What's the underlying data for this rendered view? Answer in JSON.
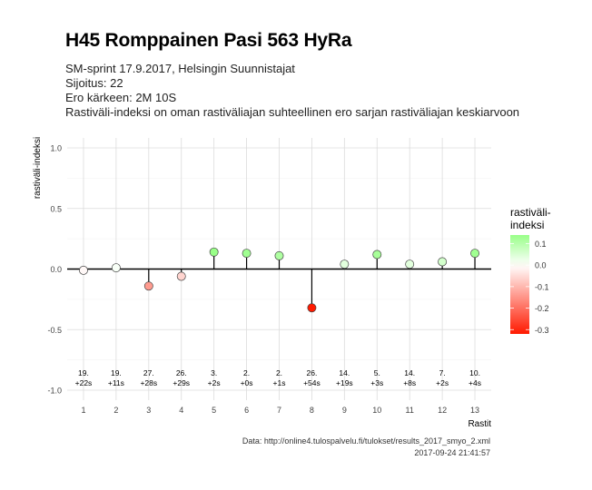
{
  "title": "H45 Romppainen Pasi 563 HyRa",
  "subtitle_lines": [
    "SM-sprint 17.9.2017, Helsingin Suunnistajat",
    "Sijoitus: 22",
    "Ero kärkeen: 2M 10S",
    "Rastiväli-indeksi on oman rastiväliajan suhteellinen ero sarjan rastiväliajan keskiarvoon"
  ],
  "footer": {
    "source": "Data: http://online4.tulospalvelu.fi/tulokset/results_2017_smyo_2.xml",
    "timestamp": "2017-09-24 21:41:57"
  },
  "chart_data": {
    "type": "scatter",
    "subtype": "lollipop",
    "xlabel": "Rastit",
    "ylabel": "rastiväli-indeksi",
    "x": [
      1,
      2,
      3,
      4,
      5,
      6,
      7,
      8,
      9,
      10,
      11,
      12,
      13
    ],
    "values": [
      -0.01,
      0.01,
      -0.14,
      -0.06,
      0.14,
      0.13,
      0.11,
      -0.32,
      0.04,
      0.12,
      0.04,
      0.06,
      0.13
    ],
    "point_labels": [
      [
        "19.",
        "+22s"
      ],
      [
        "19.",
        "+11s"
      ],
      [
        "27.",
        "+28s"
      ],
      [
        "26.",
        "+29s"
      ],
      [
        "3.",
        "+2s"
      ],
      [
        "2.",
        "+0s"
      ],
      [
        "2.",
        "+1s"
      ],
      [
        "26.",
        "+54s"
      ],
      [
        "14.",
        "+19s"
      ],
      [
        "5.",
        "+3s"
      ],
      [
        "14.",
        "+8s"
      ],
      [
        "7.",
        "+2s"
      ],
      [
        "10.",
        "+4s"
      ]
    ],
    "xlim": [
      0.5,
      13.5
    ],
    "ylim": [
      -1.0,
      1.0
    ],
    "y_ticks": [
      "1.0",
      "0.5",
      "0.0",
      "-0.5",
      "-1.0"
    ],
    "x_ticks": [
      "1",
      "2",
      "3",
      "4",
      "5",
      "6",
      "7",
      "8",
      "9",
      "10",
      "11",
      "12",
      "13"
    ],
    "grid": true,
    "legend": {
      "title_lines": [
        "rastiväli-",
        "indeksi"
      ],
      "position": "right",
      "ticks": [
        "0.1",
        "0.0",
        "-0.1",
        "-0.2",
        "-0.3"
      ],
      "range": [
        -0.32,
        0.14
      ],
      "colors": {
        "low": "#ff1a00",
        "mid": "#ffffff",
        "high": "#99ff88"
      }
    }
  }
}
